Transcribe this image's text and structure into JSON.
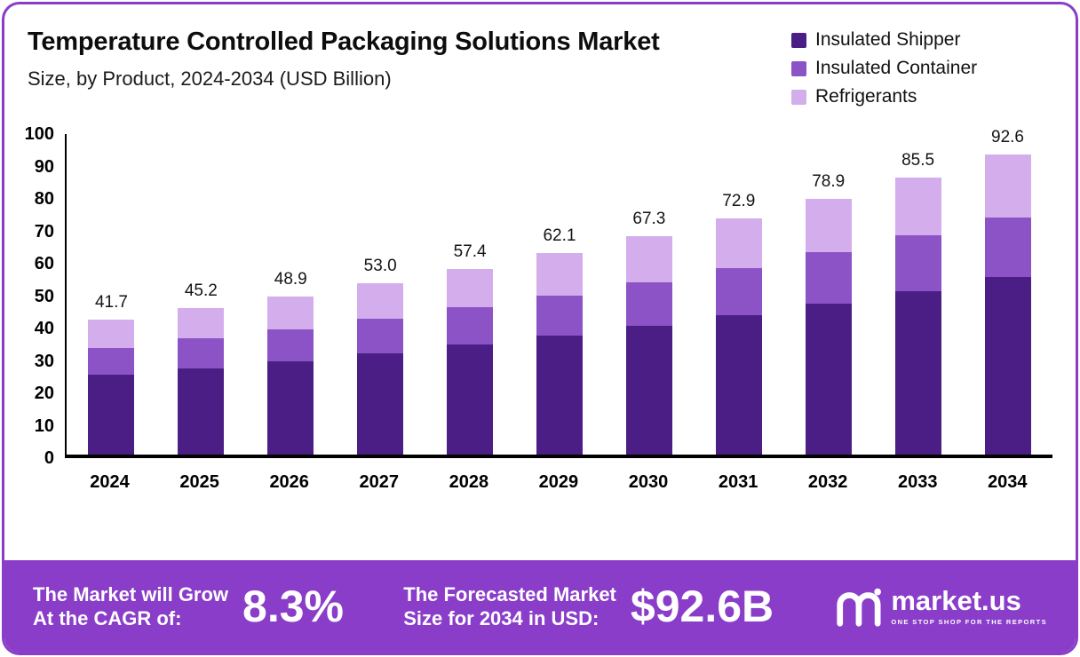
{
  "header": {
    "title": "Temperature Controlled Packaging Solutions Market",
    "subtitle": "Size, by Product, 2024-2034 (USD Billion)"
  },
  "legend": [
    {
      "label": "Insulated Shipper",
      "color": "#4b1e85"
    },
    {
      "label": "Insulated Container",
      "color": "#8c53c6"
    },
    {
      "label": "Refrigerants",
      "color": "#d4aeec"
    }
  ],
  "chart_data": {
    "type": "bar",
    "stacked": true,
    "title": "Temperature Controlled Packaging Solutions Market Size, by Product, 2024-2034 (USD Billion)",
    "xlabel": "",
    "ylabel": "USD Billion",
    "ylim": [
      0,
      100
    ],
    "yticks": [
      0,
      10,
      20,
      30,
      40,
      50,
      60,
      70,
      80,
      90,
      100
    ],
    "grid": false,
    "legend_position": "top-right",
    "categories": [
      "2024",
      "2025",
      "2026",
      "2027",
      "2028",
      "2029",
      "2030",
      "2031",
      "2032",
      "2033",
      "2034"
    ],
    "series": [
      {
        "name": "Insulated Shipper",
        "color": "#4b1e85",
        "values": [
          24.6,
          26.7,
          28.9,
          31.3,
          33.9,
          36.7,
          39.7,
          43.0,
          46.6,
          50.5,
          54.7
        ]
      },
      {
        "name": "Insulated Container",
        "color": "#8c53c6",
        "values": [
          8.4,
          9.1,
          9.8,
          10.6,
          11.5,
          12.4,
          13.5,
          14.6,
          15.8,
          17.1,
          18.5
        ]
      },
      {
        "name": "Refrigerants",
        "color": "#d4aeec",
        "values": [
          8.7,
          9.4,
          10.2,
          11.1,
          12.0,
          13.0,
          14.1,
          15.3,
          16.5,
          17.9,
          19.4
        ]
      }
    ],
    "totals": [
      41.7,
      45.2,
      48.9,
      53.0,
      57.4,
      62.1,
      67.3,
      72.9,
      78.9,
      85.5,
      92.6
    ]
  },
  "banner": {
    "background": "#8a3dc8",
    "cagr_label_line1": "The Market will Grow",
    "cagr_label_line2": "At the CAGR of:",
    "cagr_value": "8.3%",
    "forecast_label_line1": "The Forecasted Market",
    "forecast_label_line2": "Size for 2034 in USD:",
    "forecast_value": "$92.6B",
    "brand": "market.us",
    "brand_tagline": "ONE STOP SHOP FOR THE REPORTS"
  }
}
